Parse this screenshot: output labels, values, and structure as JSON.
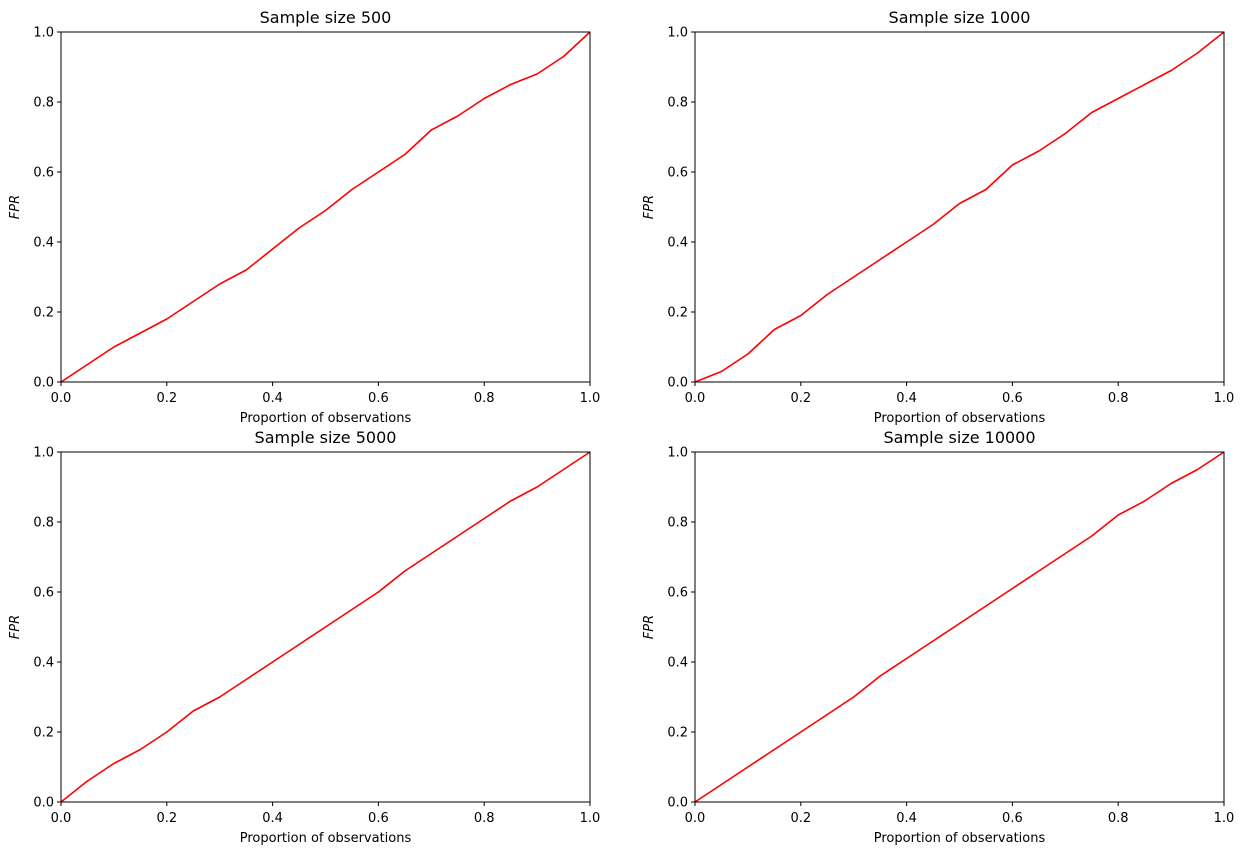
{
  "chart_data": [
    {
      "type": "line",
      "title": "Sample size 500",
      "xlabel": "Proportion of observations",
      "ylabel": "FPR",
      "xlim": [
        0,
        1
      ],
      "ylim": [
        0,
        1
      ],
      "xticks": [
        "0.0",
        "0.2",
        "0.4",
        "0.6",
        "0.8",
        "1.0"
      ],
      "yticks": [
        "0.0",
        "0.2",
        "0.4",
        "0.6",
        "0.8",
        "1.0"
      ],
      "grid": false,
      "color": "#ff0000",
      "series": [
        {
          "x": [
            0,
            0.05,
            0.1,
            0.15,
            0.2,
            0.25,
            0.3,
            0.35,
            0.4,
            0.45,
            0.5,
            0.55,
            0.6,
            0.65,
            0.7,
            0.75,
            0.8,
            0.85,
            0.9,
            0.95,
            1.0
          ],
          "y": [
            0,
            0.05,
            0.1,
            0.14,
            0.18,
            0.23,
            0.28,
            0.32,
            0.38,
            0.44,
            0.49,
            0.55,
            0.6,
            0.65,
            0.72,
            0.76,
            0.81,
            0.85,
            0.88,
            0.93,
            1.0
          ]
        }
      ]
    },
    {
      "type": "line",
      "title": "Sample size 1000",
      "xlabel": "Proportion of observations",
      "ylabel": "FPR",
      "xlim": [
        0,
        1
      ],
      "ylim": [
        0,
        1
      ],
      "xticks": [
        "0.0",
        "0.2",
        "0.4",
        "0.6",
        "0.8",
        "1.0"
      ],
      "yticks": [
        "0.0",
        "0.2",
        "0.4",
        "0.6",
        "0.8",
        "1.0"
      ],
      "grid": false,
      "color": "#ff0000",
      "series": [
        {
          "x": [
            0,
            0.05,
            0.1,
            0.15,
            0.2,
            0.25,
            0.3,
            0.35,
            0.4,
            0.45,
            0.5,
            0.55,
            0.6,
            0.65,
            0.7,
            0.75,
            0.8,
            0.85,
            0.9,
            0.95,
            1.0
          ],
          "y": [
            0,
            0.03,
            0.08,
            0.15,
            0.19,
            0.25,
            0.3,
            0.35,
            0.4,
            0.45,
            0.51,
            0.55,
            0.62,
            0.66,
            0.71,
            0.77,
            0.81,
            0.85,
            0.89,
            0.94,
            1.0
          ]
        }
      ]
    },
    {
      "type": "line",
      "title": "Sample size 5000",
      "xlabel": "Proportion of observations",
      "ylabel": "FPR",
      "xlim": [
        0,
        1
      ],
      "ylim": [
        0,
        1
      ],
      "xticks": [
        "0.0",
        "0.2",
        "0.4",
        "0.6",
        "0.8",
        "1.0"
      ],
      "yticks": [
        "0.0",
        "0.2",
        "0.4",
        "0.6",
        "0.8",
        "1.0"
      ],
      "grid": false,
      "color": "#ff0000",
      "series": [
        {
          "x": [
            0,
            0.05,
            0.1,
            0.15,
            0.2,
            0.25,
            0.3,
            0.35,
            0.4,
            0.45,
            0.5,
            0.55,
            0.6,
            0.65,
            0.7,
            0.75,
            0.8,
            0.85,
            0.9,
            0.95,
            1.0
          ],
          "y": [
            0,
            0.06,
            0.11,
            0.15,
            0.2,
            0.26,
            0.3,
            0.35,
            0.4,
            0.45,
            0.5,
            0.55,
            0.6,
            0.66,
            0.71,
            0.76,
            0.81,
            0.86,
            0.9,
            0.95,
            1.0
          ]
        }
      ]
    },
    {
      "type": "line",
      "title": "Sample size 10000",
      "xlabel": "Proportion of observations",
      "ylabel": "FPR",
      "xlim": [
        0,
        1
      ],
      "ylim": [
        0,
        1
      ],
      "xticks": [
        "0.0",
        "0.2",
        "0.4",
        "0.6",
        "0.8",
        "1.0"
      ],
      "yticks": [
        "0.0",
        "0.2",
        "0.4",
        "0.6",
        "0.8",
        "1.0"
      ],
      "grid": false,
      "color": "#ff0000",
      "series": [
        {
          "x": [
            0,
            0.05,
            0.1,
            0.15,
            0.2,
            0.25,
            0.3,
            0.35,
            0.4,
            0.45,
            0.5,
            0.55,
            0.6,
            0.65,
            0.7,
            0.75,
            0.8,
            0.85,
            0.9,
            0.95,
            1.0
          ],
          "y": [
            0,
            0.05,
            0.1,
            0.15,
            0.2,
            0.25,
            0.3,
            0.36,
            0.41,
            0.46,
            0.51,
            0.56,
            0.61,
            0.66,
            0.71,
            0.76,
            0.82,
            0.86,
            0.91,
            0.95,
            1.0
          ]
        }
      ]
    }
  ]
}
